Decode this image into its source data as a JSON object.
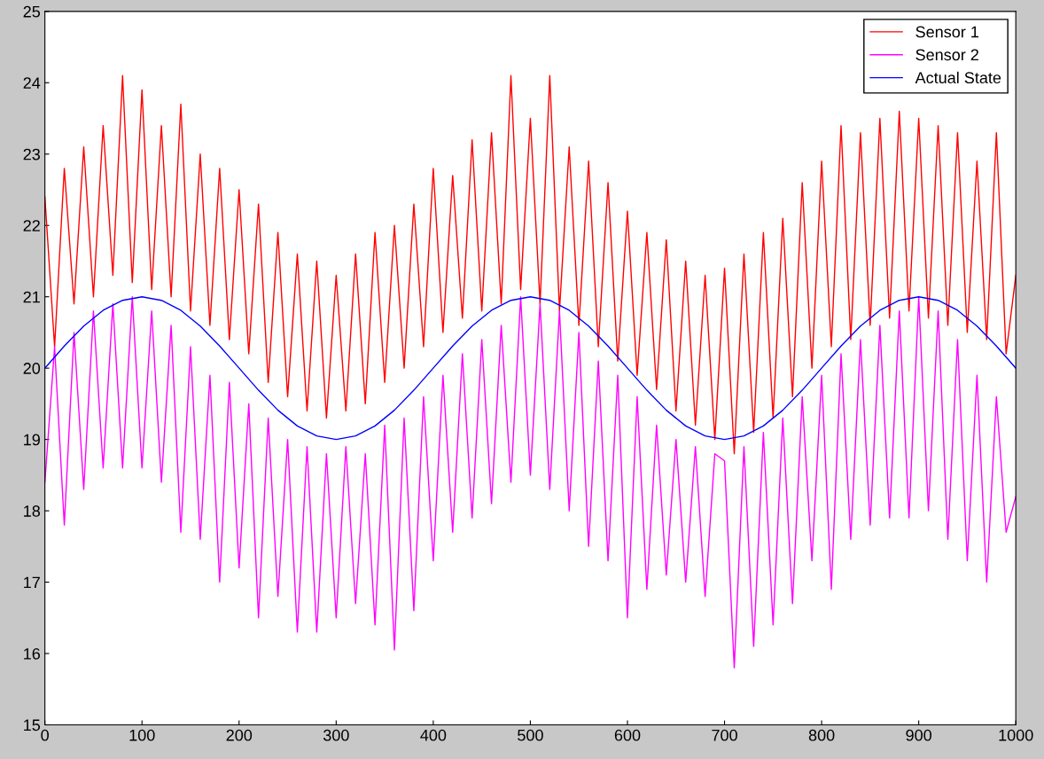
{
  "chart_data": {
    "type": "line",
    "xlim": [
      0,
      1000
    ],
    "ylim": [
      15,
      25
    ],
    "xticks": [
      0,
      100,
      200,
      300,
      400,
      500,
      600,
      700,
      800,
      900,
      1000
    ],
    "yticks": [
      15,
      16,
      17,
      18,
      19,
      20,
      21,
      22,
      23,
      24,
      25
    ],
    "legend": "top right",
    "grid": false,
    "marker": "none",
    "line_style": "solid",
    "x": [
      0,
      10,
      20,
      30,
      40,
      50,
      60,
      70,
      80,
      90,
      100,
      110,
      120,
      130,
      140,
      150,
      160,
      170,
      180,
      190,
      200,
      210,
      220,
      230,
      240,
      250,
      260,
      270,
      280,
      290,
      300,
      310,
      320,
      330,
      340,
      350,
      360,
      370,
      380,
      390,
      400,
      410,
      420,
      430,
      440,
      450,
      460,
      470,
      480,
      490,
      500,
      510,
      520,
      530,
      540,
      550,
      560,
      570,
      580,
      590,
      600,
      610,
      620,
      630,
      640,
      650,
      660,
      670,
      680,
      690,
      700,
      710,
      720,
      730,
      740,
      750,
      760,
      770,
      780,
      790,
      800,
      810,
      820,
      830,
      840,
      850,
      860,
      870,
      880,
      890,
      900,
      910,
      920,
      930,
      940,
      950,
      960,
      970,
      980,
      990,
      1000
    ],
    "series": [
      {
        "name": "Sensor 1",
        "color": "#ff0000",
        "values": [
          22.4,
          20.3,
          22.8,
          20.9,
          23.1,
          21.0,
          23.4,
          21.3,
          24.1,
          21.2,
          23.9,
          21.1,
          23.4,
          21.0,
          23.7,
          20.8,
          23.0,
          20.6,
          22.8,
          20.4,
          22.5,
          20.2,
          22.3,
          19.8,
          21.9,
          19.6,
          21.6,
          19.4,
          21.5,
          19.3,
          21.3,
          19.4,
          21.6,
          19.5,
          21.9,
          19.8,
          22.0,
          20.0,
          22.3,
          20.3,
          22.8,
          20.5,
          22.7,
          20.7,
          23.2,
          20.8,
          23.3,
          20.9,
          24.1,
          21.1,
          23.5,
          20.9,
          24.1,
          20.8,
          23.1,
          20.6,
          22.9,
          20.3,
          22.6,
          20.1,
          22.2,
          19.9,
          21.9,
          19.7,
          21.8,
          19.4,
          21.5,
          19.2,
          21.3,
          19.0,
          21.4,
          18.8,
          21.6,
          19.1,
          21.9,
          19.3,
          22.1,
          19.6,
          22.6,
          20.0,
          22.9,
          20.3,
          23.4,
          20.4,
          23.3,
          20.6,
          23.5,
          20.7,
          23.6,
          20.8,
          23.5,
          20.7,
          23.4,
          20.6,
          23.3,
          20.5,
          22.9,
          20.4,
          23.3,
          20.2,
          21.3
        ]
      },
      {
        "name": "Sensor 2",
        "color": "#ff00ff",
        "values": [
          18.4,
          20.3,
          17.8,
          20.5,
          18.3,
          20.8,
          18.6,
          20.9,
          18.6,
          21.0,
          18.6,
          20.8,
          18.4,
          20.6,
          17.7,
          20.3,
          17.6,
          19.9,
          17.0,
          19.8,
          17.2,
          19.5,
          16.5,
          19.3,
          16.8,
          19.0,
          16.3,
          18.9,
          16.3,
          18.8,
          16.5,
          18.9,
          16.7,
          18.8,
          16.4,
          19.2,
          16.05,
          19.3,
          16.6,
          19.6,
          17.3,
          19.9,
          17.7,
          20.2,
          17.9,
          20.4,
          18.1,
          20.6,
          18.4,
          21.0,
          18.5,
          20.9,
          18.3,
          20.8,
          18.0,
          20.5,
          17.5,
          20.1,
          17.3,
          19.9,
          16.5,
          19.6,
          16.9,
          19.2,
          17.1,
          19.0,
          17.0,
          18.9,
          16.8,
          18.8,
          18.7,
          15.8,
          18.9,
          16.1,
          19.1,
          16.4,
          19.3,
          16.7,
          19.6,
          17.3,
          19.9,
          16.9,
          20.2,
          17.6,
          20.4,
          17.8,
          20.6,
          17.9,
          20.8,
          17.9,
          21.0,
          18.0,
          20.8,
          17.6,
          20.4,
          17.3,
          19.9,
          17.0,
          19.6,
          17.7,
          18.2
        ]
      },
      {
        "name": "Actual State",
        "color": "#0000ff",
        "x": [
          0,
          20,
          40,
          60,
          80,
          100,
          120,
          140,
          160,
          180,
          200,
          220,
          240,
          260,
          280,
          300,
          320,
          340,
          360,
          380,
          400,
          420,
          440,
          460,
          480,
          500,
          520,
          540,
          560,
          580,
          600,
          620,
          640,
          660,
          680,
          700,
          720,
          740,
          760,
          780,
          800,
          820,
          840,
          860,
          880,
          900,
          920,
          940,
          960,
          980,
          1000
        ],
        "values": [
          20.0,
          20.31,
          20.59,
          20.81,
          20.95,
          21.0,
          20.95,
          20.81,
          20.59,
          20.31,
          20.0,
          19.69,
          19.41,
          19.19,
          19.05,
          19.0,
          19.05,
          19.19,
          19.41,
          19.69,
          20.0,
          20.31,
          20.59,
          20.81,
          20.95,
          21.0,
          20.95,
          20.81,
          20.59,
          20.31,
          20.0,
          19.69,
          19.41,
          19.19,
          19.05,
          19.0,
          19.05,
          19.19,
          19.41,
          19.69,
          20.0,
          20.31,
          20.59,
          20.81,
          20.95,
          21.0,
          20.95,
          20.81,
          20.59,
          20.31,
          20.0
        ]
      }
    ]
  }
}
